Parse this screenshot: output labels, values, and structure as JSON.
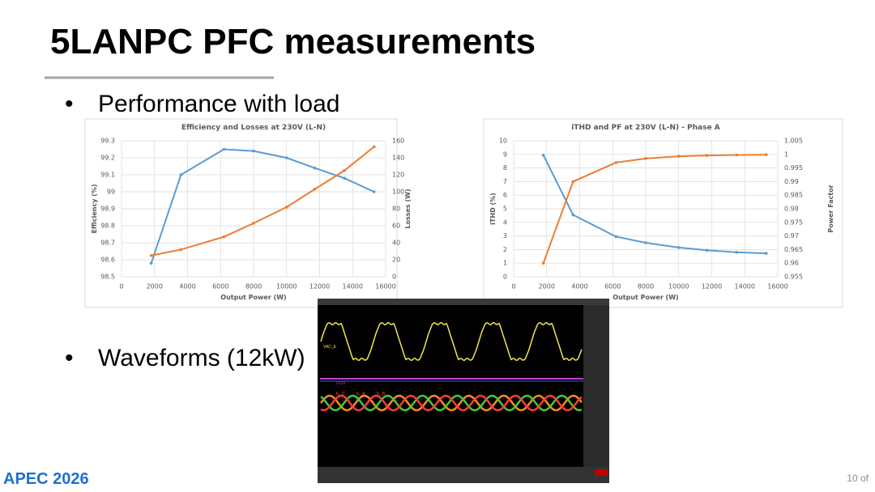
{
  "title": "5LANPC PFC measurements",
  "bullets": [
    "Performance with load",
    "Waveforms (12kW)"
  ],
  "logo": "APEC 2026",
  "page_number": "10 of",
  "scope_labels": [
    "VAC_E",
    "DCN",
    "IL_C",
    "IL_A",
    "IL_B"
  ],
  "chart_data": [
    {
      "type": "line",
      "title": "Efficiency and Losses at 230V (L-N)",
      "x_label": "Output Power (W)",
      "y_label": "Efficiency (%)",
      "y2_label": "Losses (W)",
      "x": [
        1800,
        3600,
        6200,
        8000,
        10000,
        11700,
        13500,
        15300
      ],
      "series": [
        {
          "color": "#5b9bd5",
          "values": [
            98.58,
            99.1,
            99.25,
            99.24,
            99.2,
            99.14,
            99.08,
            99.0
          ]
        },
        {
          "color": "#ed7d31",
          "axis": "y2",
          "values": [
            25,
            32,
            47,
            63,
            82,
            103,
            125,
            153
          ]
        }
      ],
      "xlim": [
        0,
        16000
      ],
      "xticks": [
        0,
        2000,
        4000,
        6000,
        8000,
        10000,
        12000,
        14000,
        16000
      ],
      "ylim": [
        98.5,
        99.3
      ],
      "yticks": [
        98.5,
        98.6,
        98.7,
        98.8,
        98.9,
        99,
        99.1,
        99.2,
        99.3
      ],
      "y2lim": [
        0,
        160
      ],
      "y2ticks": [
        0,
        20,
        40,
        60,
        80,
        100,
        120,
        140,
        160
      ],
      "grid": true
    },
    {
      "type": "line",
      "title": "iTHD and PF at 230V (L-N) - Phase A",
      "x_label": "Output Power (W)",
      "y_label": "iTHD (%)",
      "y2_label": "Power Factor",
      "x": [
        1800,
        3600,
        6200,
        8000,
        10000,
        11700,
        13500,
        15300
      ],
      "series": [
        {
          "color": "#5b9bd5",
          "values": [
            8.95,
            4.55,
            2.95,
            2.5,
            2.15,
            1.95,
            1.8,
            1.72
          ]
        },
        {
          "color": "#ed7d31",
          "axis": "y2",
          "values": [
            0.96,
            0.99,
            0.997,
            0.9985,
            0.9993,
            0.9996,
            0.9998,
            0.9999
          ]
        }
      ],
      "xlim": [
        0,
        16000
      ],
      "xticks": [
        0,
        2000,
        4000,
        6000,
        8000,
        10000,
        12000,
        14000,
        16000
      ],
      "ylim": [
        0,
        10
      ],
      "yticks": [
        0,
        1,
        2,
        3,
        4,
        5,
        6,
        7,
        8,
        9,
        10
      ],
      "y2lim": [
        0.955,
        1.005
      ],
      "y2ticks": [
        0.955,
        0.96,
        0.965,
        0.97,
        0.975,
        0.98,
        0.985,
        0.99,
        0.995,
        1,
        1.005
      ],
      "grid": true
    }
  ]
}
